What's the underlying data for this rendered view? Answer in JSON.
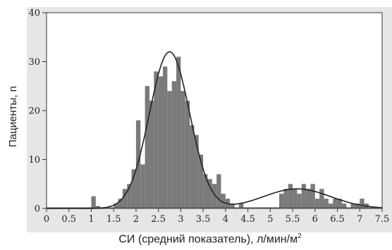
{
  "chart_data": {
    "type": "bar",
    "title": "",
    "xlabel": "СИ (средний показатель), л/мин/м",
    "xlabel_superscript": "2",
    "ylabel": "Пациенты, n",
    "xlim": [
      0,
      7.5
    ],
    "ylim": [
      0,
      40
    ],
    "xticks": [
      "0",
      "0.5",
      "1",
      "1.5",
      "2",
      "2.5",
      "3",
      "3.5",
      "4",
      "4.5",
      "5",
      "5.5",
      "6",
      "6.5",
      "7",
      "7.5"
    ],
    "yticks": [
      "0",
      "10",
      "20",
      "30",
      "40"
    ],
    "bin_width": 0.1,
    "bins": [
      {
        "x": 1.0,
        "y": 2.5
      },
      {
        "x": 1.1,
        "y": 0.5
      },
      {
        "x": 1.5,
        "y": 1
      },
      {
        "x": 1.6,
        "y": 2
      },
      {
        "x": 1.7,
        "y": 4
      },
      {
        "x": 1.8,
        "y": 5
      },
      {
        "x": 1.9,
        "y": 8
      },
      {
        "x": 2.0,
        "y": 18
      },
      {
        "x": 2.1,
        "y": 9
      },
      {
        "x": 2.2,
        "y": 25
      },
      {
        "x": 2.3,
        "y": 22
      },
      {
        "x": 2.4,
        "y": 28
      },
      {
        "x": 2.5,
        "y": 27
      },
      {
        "x": 2.6,
        "y": 29
      },
      {
        "x": 2.7,
        "y": 24
      },
      {
        "x": 2.8,
        "y": 26
      },
      {
        "x": 2.9,
        "y": 31
      },
      {
        "x": 3.0,
        "y": 24
      },
      {
        "x": 3.1,
        "y": 22
      },
      {
        "x": 3.2,
        "y": 17
      },
      {
        "x": 3.3,
        "y": 15
      },
      {
        "x": 3.4,
        "y": 11
      },
      {
        "x": 3.5,
        "y": 7
      },
      {
        "x": 3.6,
        "y": 6
      },
      {
        "x": 3.7,
        "y": 5
      },
      {
        "x": 3.8,
        "y": 7
      },
      {
        "x": 3.9,
        "y": 3
      },
      {
        "x": 4.0,
        "y": 2
      },
      {
        "x": 4.1,
        "y": 1
      },
      {
        "x": 4.3,
        "y": 1
      },
      {
        "x": 5.2,
        "y": 3
      },
      {
        "x": 5.3,
        "y": 4
      },
      {
        "x": 5.4,
        "y": 5
      },
      {
        "x": 5.5,
        "y": 4
      },
      {
        "x": 5.6,
        "y": 3
      },
      {
        "x": 5.7,
        "y": 5
      },
      {
        "x": 5.8,
        "y": 4
      },
      {
        "x": 5.9,
        "y": 5
      },
      {
        "x": 6.0,
        "y": 2
      },
      {
        "x": 6.1,
        "y": 4
      },
      {
        "x": 6.2,
        "y": 2
      },
      {
        "x": 6.3,
        "y": 1
      },
      {
        "x": 6.4,
        "y": 2
      },
      {
        "x": 6.5,
        "y": 2
      },
      {
        "x": 6.6,
        "y": 1
      },
      {
        "x": 6.8,
        "y": 1
      },
      {
        "x": 6.9,
        "y": 1
      },
      {
        "x": 7.0,
        "y": 2
      },
      {
        "x": 7.1,
        "y": 1
      }
    ],
    "fit_curve": {
      "type": "bimodal-gaussian",
      "components": [
        {
          "amplitude": 32,
          "mean": 2.75,
          "sd": 0.45
        },
        {
          "amplitude": 4,
          "mean": 5.6,
          "sd": 0.75
        }
      ]
    },
    "colors": {
      "bar": "#7a7a7a",
      "curve": "#222222",
      "plot_background": "#ffffff",
      "frame_background": "#e6e6e6"
    },
    "grid": false,
    "legend": "none"
  }
}
